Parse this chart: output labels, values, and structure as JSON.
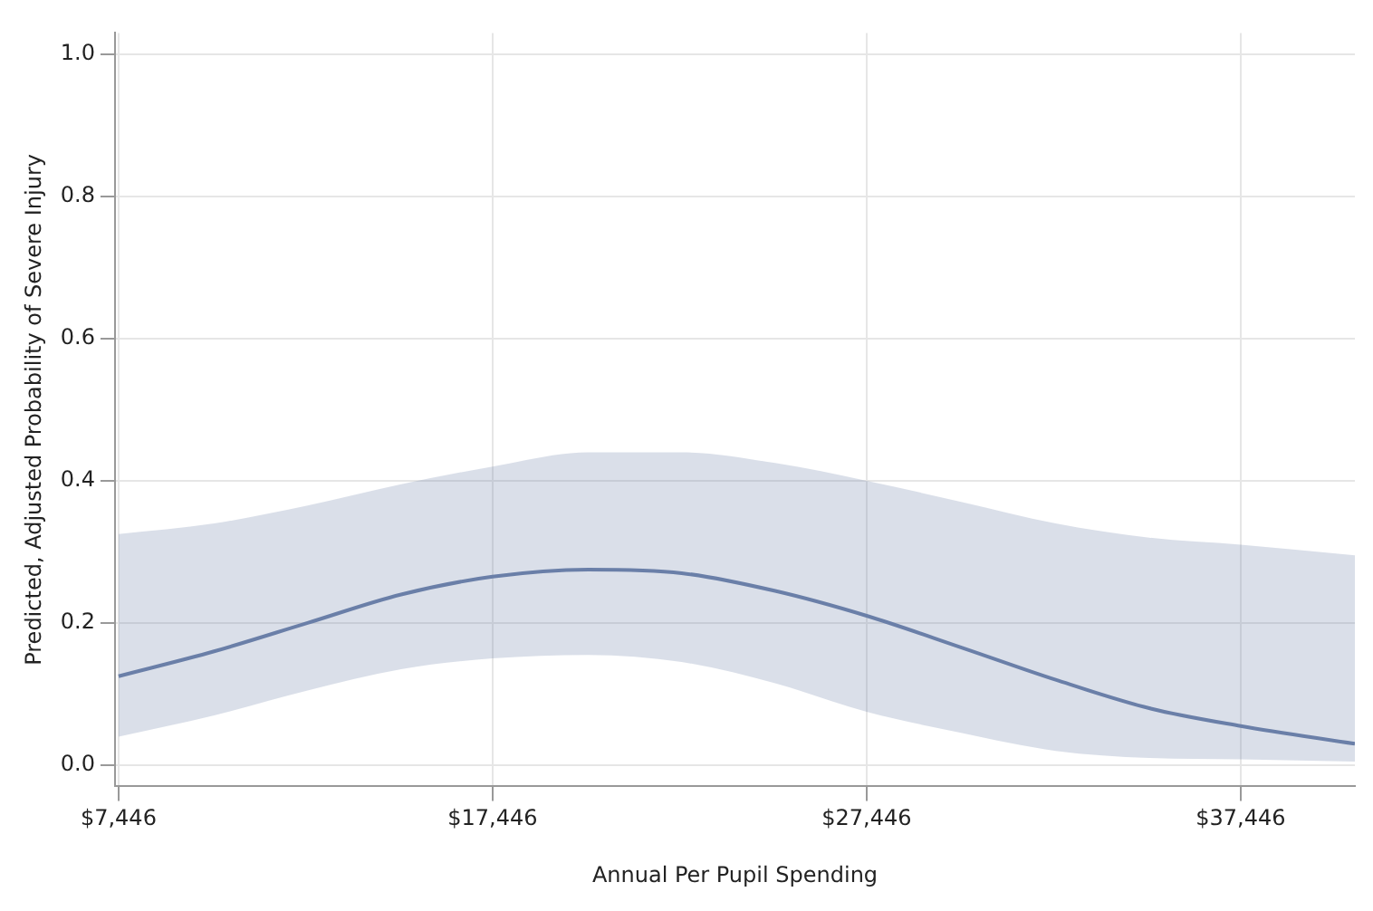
{
  "chart_data": {
    "type": "line",
    "xlabel": "Annual Per Pupil Spending",
    "ylabel": "Predicted, Adjusted Probability of Severe Injury",
    "x": [
      7446,
      10000,
      12500,
      15000,
      17446,
      20000,
      22500,
      25000,
      27446,
      30000,
      32500,
      35000,
      37446,
      40500
    ],
    "series": [
      {
        "color": "#6a7fa8",
        "values": [
          0.125,
          0.16,
          0.2,
          0.24,
          0.265,
          0.275,
          0.27,
          0.245,
          0.21,
          0.165,
          0.12,
          0.08,
          0.055,
          0.03
        ],
        "lower": [
          0.04,
          0.07,
          0.105,
          0.135,
          0.15,
          0.155,
          0.145,
          0.115,
          0.075,
          0.045,
          0.02,
          0.01,
          0.008,
          0.005
        ],
        "upper": [
          0.325,
          0.34,
          0.365,
          0.395,
          0.42,
          0.44,
          0.44,
          0.425,
          0.4,
          0.37,
          0.34,
          0.32,
          0.31,
          0.295
        ]
      }
    ],
    "xlim": [
      7350,
      40500
    ],
    "xticks": [
      {
        "value": 7446,
        "label": "$7,446"
      },
      {
        "value": 17446,
        "label": "$17,446"
      },
      {
        "value": 27446,
        "label": "$27,446"
      },
      {
        "value": 37446,
        "label": "$37,446"
      }
    ],
    "ylim": [
      -0.03,
      1.03
    ],
    "yticks": [
      {
        "value": 0,
        "label": "0.0"
      },
      {
        "value": 0.2,
        "label": "0.2"
      },
      {
        "value": 0.4,
        "label": "0.4"
      },
      {
        "value": 0.6,
        "label": "0.6"
      },
      {
        "value": 0.8,
        "label": "0.8"
      },
      {
        "value": 1,
        "label": "1.0"
      }
    ],
    "grid": true,
    "legend": false,
    "marker": "none",
    "line_style": "solid"
  }
}
